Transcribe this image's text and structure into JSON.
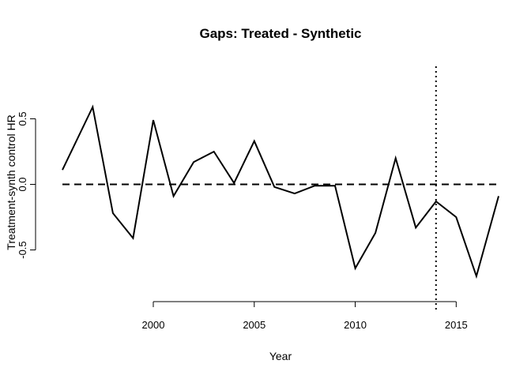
{
  "chart_data": {
    "type": "line",
    "title": "Gaps: Treated - Synthetic",
    "xlabel": "Year",
    "ylabel": "Treatment-synth control HR",
    "xlim": [
      1995.5,
      2017.1
    ],
    "ylim": [
      -0.9,
      0.9
    ],
    "x_ticks": [
      2000,
      2005,
      2010,
      2015
    ],
    "y_ticks": [
      0.5,
      0.0,
      -0.5
    ],
    "x_tick_labels": [
      "2000",
      "2005",
      "2010",
      "2015"
    ],
    "y_tick_labels": [
      "0.5",
      "0.0",
      "-0.5"
    ],
    "grid": false,
    "reference_lines": [
      {
        "orientation": "horizontal",
        "value": 0,
        "style": "dashed"
      },
      {
        "orientation": "vertical",
        "value": 2014,
        "style": "dotted"
      }
    ],
    "series": [
      {
        "color": "#000000",
        "x": [
          1995.5,
          1997,
          1998,
          1999,
          2000,
          2001,
          2002,
          2003,
          2004,
          2005,
          2006,
          2007,
          2008,
          2009,
          2010,
          2011,
          2012,
          2013,
          2014,
          2015,
          2016,
          2017.1
        ],
        "y": [
          0.11,
          0.59,
          -0.22,
          -0.41,
          0.49,
          -0.09,
          0.17,
          0.25,
          0.01,
          0.33,
          -0.02,
          -0.07,
          -0.01,
          -0.01,
          -0.64,
          -0.37,
          0.2,
          -0.33,
          -0.13,
          -0.25,
          -0.7,
          -0.09
        ]
      }
    ]
  }
}
